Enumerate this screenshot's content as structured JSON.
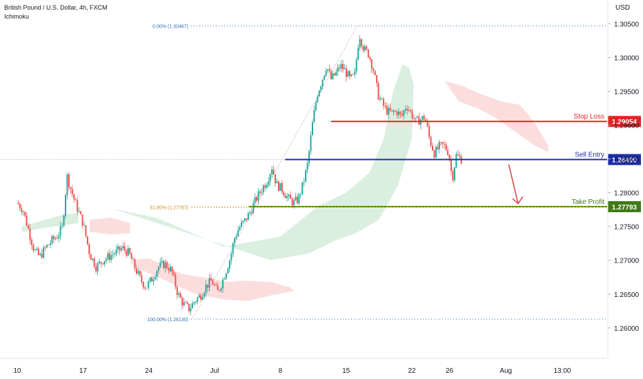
{
  "header": {
    "symbol_title": "British Pound / U.S. Dollar, 4h, FXCM",
    "indicator": "Ichimoku",
    "currency": "USD"
  },
  "chart_data": {
    "type": "candlestick",
    "ylim": [
      1.2555,
      1.3085
    ],
    "y_ticks": [
      1.26,
      1.265,
      1.27,
      1.275,
      1.28,
      1.285,
      1.29,
      1.295,
      1.3,
      1.305
    ],
    "y_tick_labels": [
      "1.26000",
      "1.26500",
      "1.27000",
      "1.27500",
      "1.28000",
      "1.28500",
      "1.29000",
      "1.29500",
      "1.30000",
      "1.30500"
    ],
    "x_ticks": [
      {
        "label": "10",
        "day": 0
      },
      {
        "label": "17",
        "day": 7
      },
      {
        "label": "24",
        "day": 14
      },
      {
        "label": "Jul",
        "day": 21
      },
      {
        "label": "8",
        "day": 28
      },
      {
        "label": "15",
        "day": 35
      },
      {
        "label": "22",
        "day": 42
      },
      {
        "label": "26",
        "day": 46
      },
      {
        "label": "Aug",
        "day": 52
      },
      {
        "label": "13:00",
        "day": 58
      }
    ],
    "candle_days": [
      0,
      47.3
    ],
    "close_path": [
      [
        0,
        1.2785
      ],
      [
        0.6,
        1.2775
      ],
      [
        1.2,
        1.2745
      ],
      [
        1.8,
        1.2715
      ],
      [
        2.4,
        1.2705
      ],
      [
        3.0,
        1.2718
      ],
      [
        3.6,
        1.2728
      ],
      [
        4.2,
        1.2735
      ],
      [
        4.8,
        1.2748
      ],
      [
        5.3,
        1.2825
      ],
      [
        5.7,
        1.2805
      ],
      [
        6.3,
        1.278
      ],
      [
        7.0,
        1.2755
      ],
      [
        7.7,
        1.271
      ],
      [
        8.4,
        1.269
      ],
      [
        9.1,
        1.27
      ],
      [
        9.8,
        1.2706
      ],
      [
        10.5,
        1.2712
      ],
      [
        11.2,
        1.2718
      ],
      [
        11.9,
        1.271
      ],
      [
        12.5,
        1.269
      ],
      [
        13.1,
        1.2672
      ],
      [
        13.7,
        1.266
      ],
      [
        14.3,
        1.2672
      ],
      [
        15.0,
        1.269
      ],
      [
        15.7,
        1.2695
      ],
      [
        16.4,
        1.2685
      ],
      [
        17.1,
        1.265
      ],
      [
        17.7,
        1.2635
      ],
      [
        18.3,
        1.2628
      ],
      [
        18.9,
        1.264
      ],
      [
        19.5,
        1.2648
      ],
      [
        20.1,
        1.2662
      ],
      [
        20.7,
        1.267
      ],
      [
        21.3,
        1.2652
      ],
      [
        21.8,
        1.2668
      ],
      [
        22.3,
        1.2688
      ],
      [
        22.7,
        1.2705
      ],
      [
        23.1,
        1.2732
      ],
      [
        23.6,
        1.2748
      ],
      [
        24.2,
        1.2758
      ],
      [
        24.8,
        1.2772
      ],
      [
        25.4,
        1.279
      ],
      [
        26.0,
        1.2805
      ],
      [
        26.6,
        1.2818
      ],
      [
        27.1,
        1.2838
      ],
      [
        27.6,
        1.2812
      ],
      [
        28.2,
        1.2805
      ],
      [
        28.8,
        1.2792
      ],
      [
        29.4,
        1.2785
      ],
      [
        29.9,
        1.279
      ],
      [
        30.4,
        1.2812
      ],
      [
        30.9,
        1.2842
      ],
      [
        31.4,
        1.29
      ],
      [
        31.9,
        1.2945
      ],
      [
        32.4,
        1.2965
      ],
      [
        32.9,
        1.2988
      ],
      [
        33.4,
        1.2968
      ],
      [
        33.9,
        1.2976
      ],
      [
        34.4,
        1.2988
      ],
      [
        34.9,
        1.298
      ],
      [
        35.4,
        1.2968
      ],
      [
        35.9,
        1.2972
      ],
      [
        36.4,
        1.3035
      ],
      [
        36.9,
        1.3012
      ],
      [
        37.4,
        1.3005
      ],
      [
        37.9,
        1.2982
      ],
      [
        38.4,
        1.2945
      ],
      [
        38.9,
        1.293
      ],
      [
        39.4,
        1.292
      ],
      [
        39.9,
        1.2918
      ],
      [
        40.4,
        1.292
      ],
      [
        40.9,
        1.2912
      ],
      [
        41.4,
        1.293
      ],
      [
        41.9,
        1.2918
      ],
      [
        42.4,
        1.2905
      ],
      [
        42.9,
        1.2908
      ],
      [
        43.4,
        1.2912
      ],
      [
        43.9,
        1.2878
      ],
      [
        44.4,
        1.2858
      ],
      [
        44.9,
        1.2868
      ],
      [
        45.4,
        1.287
      ],
      [
        45.9,
        1.286
      ],
      [
        46.3,
        1.282
      ],
      [
        46.7,
        1.2855
      ],
      [
        47.3,
        1.2849
      ]
    ],
    "cloud_a": [
      [
        1,
        1.2745
      ],
      [
        4,
        1.2755
      ],
      [
        7,
        1.275
      ],
      [
        10,
        1.276
      ],
      [
        13,
        1.274
      ],
      [
        16,
        1.2712
      ],
      [
        19,
        1.2693
      ],
      [
        22,
        1.269
      ],
      [
        25,
        1.2715
      ],
      [
        28,
        1.2745
      ],
      [
        31,
        1.2768
      ],
      [
        34,
        1.2785
      ],
      [
        37,
        1.281
      ],
      [
        39,
        1.2865
      ],
      [
        41,
        1.291
      ],
      [
        43,
        1.2945
      ],
      [
        44.5,
        1.2975
      ],
      [
        46,
        1.2985
      ]
    ],
    "cloud_b": [
      [
        1,
        1.2738
      ],
      [
        4,
        1.2748
      ],
      [
        7,
        1.2742
      ],
      [
        10,
        1.2735
      ],
      [
        13,
        1.2718
      ],
      [
        16,
        1.2698
      ],
      [
        19,
        1.268
      ],
      [
        22,
        1.2662
      ],
      [
        25,
        1.266
      ],
      [
        28,
        1.2685
      ],
      [
        31,
        1.272
      ],
      [
        34,
        1.2755
      ],
      [
        37,
        1.279
      ],
      [
        39,
        1.286
      ],
      [
        41,
        1.29
      ],
      [
        43,
        1.293
      ],
      [
        44.5,
        1.296
      ],
      [
        46,
        1.297
      ]
    ],
    "cloud_green": [
      [
        10,
        1.2777
      ],
      [
        15,
        1.2762
      ],
      [
        22,
        1.272
      ],
      [
        28,
        1.2735
      ],
      [
        32,
        1.278
      ],
      [
        35,
        1.28
      ],
      [
        37.5,
        1.283
      ],
      [
        39,
        1.288
      ],
      [
        40,
        1.295
      ],
      [
        41,
        1.299
      ],
      [
        41.7,
        1.2985
      ],
      [
        42.2,
        1.296
      ],
      [
        42,
        1.288
      ],
      [
        40.5,
        1.281
      ],
      [
        38.5,
        1.276
      ],
      [
        36,
        1.274
      ],
      [
        34,
        1.273
      ],
      [
        31,
        1.271
      ],
      [
        29,
        1.2705
      ],
      [
        27,
        1.27
      ]
    ],
    "cloud_red": [
      [
        12,
        1.27
      ],
      [
        14,
        1.2703
      ],
      [
        17.5,
        1.268
      ],
      [
        21,
        1.2672
      ],
      [
        22.5,
        1.2668
      ],
      [
        24,
        1.267
      ],
      [
        27,
        1.2668
      ],
      [
        29,
        1.266
      ],
      [
        29.5,
        1.2655
      ],
      [
        27,
        1.2648
      ],
      [
        24.5,
        1.264
      ],
      [
        22,
        1.2642
      ],
      [
        19,
        1.265
      ],
      [
        15,
        1.2675
      ],
      [
        12.5,
        1.269
      ]
    ],
    "levels": {
      "stop_loss": {
        "label": "Stop Loss",
        "value": 1.29054,
        "value_label": "1.29054",
        "color": "#e02424"
      },
      "sell_entry": {
        "label": "Sell Entry",
        "value": 1.2849,
        "value_label": "1.28490",
        "color": "#1e2ca8"
      },
      "take_profit": {
        "label": "Take Profit",
        "value": 1.27793,
        "value_label": "1.27793",
        "color": "#3e7a12"
      }
    },
    "fib": {
      "level_0": {
        "label": "0.00% (1.30467)",
        "value": 1.30467,
        "color": "#2f6fb0"
      },
      "level_618": {
        "label": "61.80% (1.27787)",
        "value": 1.27787,
        "color": "#d08a18"
      },
      "level_100": {
        "label": "100.00% (1.26130)",
        "value": 1.2613,
        "color": "#2f6fb0"
      }
    },
    "prev_close": 1.2849,
    "colors": {
      "up": "#26a69a",
      "down": "#ef5350",
      "cloud_green": "#cfe9d6",
      "cloud_red": "#fbd4d4",
      "arrow": "#e0484a"
    }
  }
}
